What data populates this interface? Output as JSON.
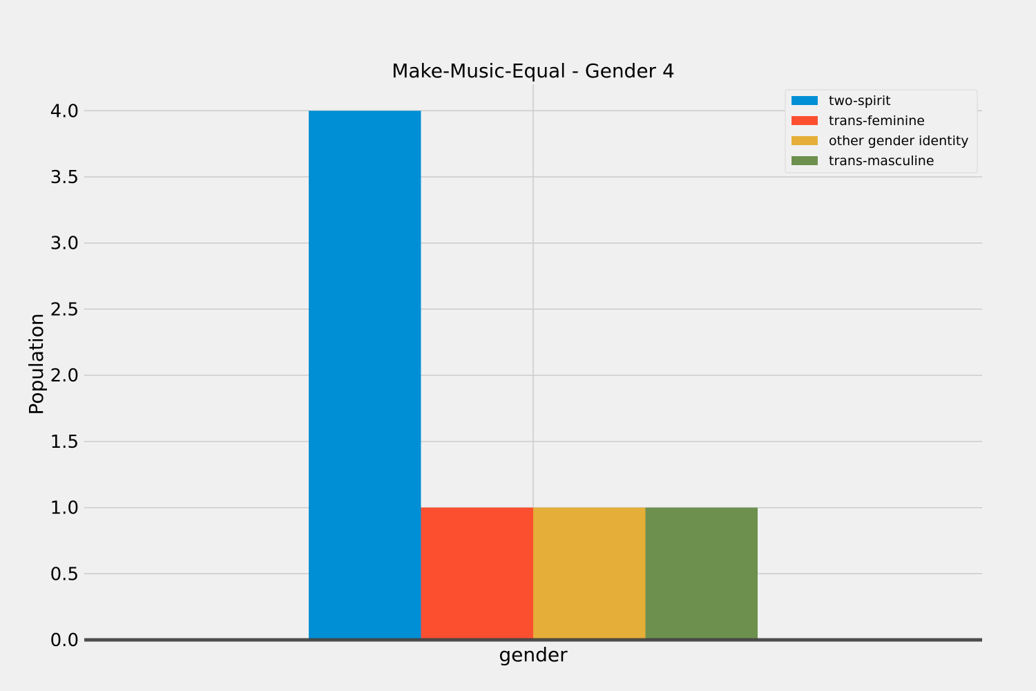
{
  "chart_data": {
    "type": "bar",
    "title": "Make-Music-Equal - Gender 4",
    "xlabel": "gender",
    "ylabel": "Population",
    "categories": [
      "gender"
    ],
    "series": [
      {
        "name": "two-spirit",
        "values": [
          4
        ],
        "color": "#008fd5"
      },
      {
        "name": "trans-feminine",
        "values": [
          1
        ],
        "color": "#fc4f30"
      },
      {
        "name": "other gender identity",
        "values": [
          1
        ],
        "color": "#e5ae38"
      },
      {
        "name": "trans-masculine",
        "values": [
          1
        ],
        "color": "#6d904f"
      }
    ],
    "ylim": [
      0,
      4.2
    ],
    "yticks": [
      "0.0",
      "0.5",
      "1.0",
      "1.5",
      "2.0",
      "2.5",
      "3.0",
      "3.5",
      "4.0"
    ],
    "grid": true,
    "legend_position": "top-right",
    "colors": {
      "background": "#f0f0f0",
      "grid": "#cbcbcb",
      "baseline": "#444444"
    }
  }
}
